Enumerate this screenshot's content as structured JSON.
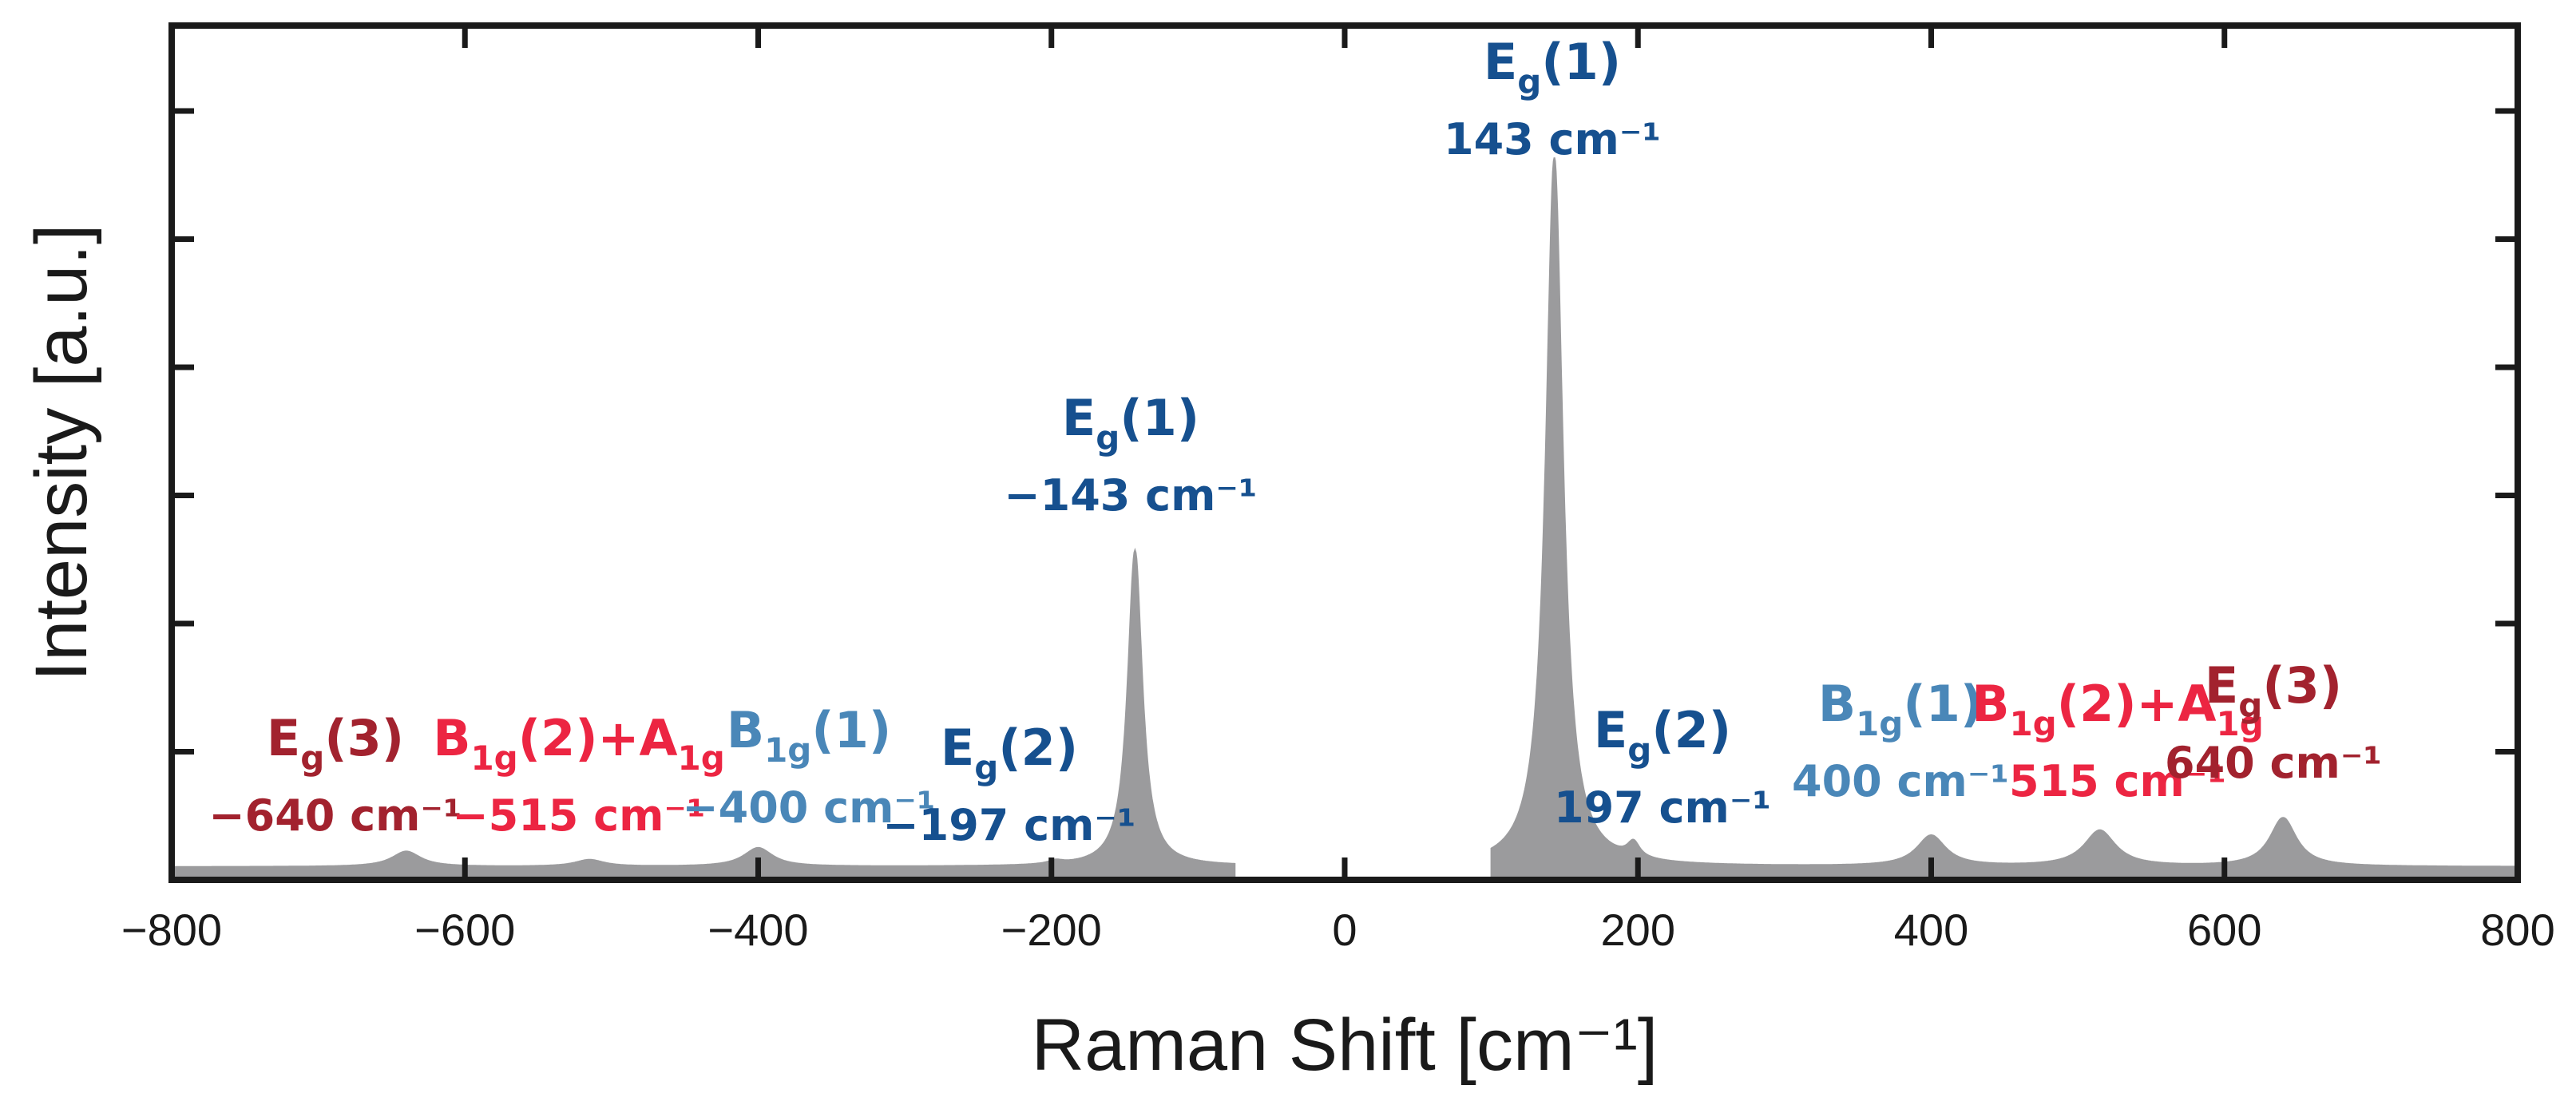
{
  "chart_data": {
    "type": "area",
    "title": "",
    "xlabel": "Raman Shift [cm⁻¹]",
    "ylabel": "Intensity [a.u.]",
    "xlim": [
      -800,
      800
    ],
    "ylim": [
      0,
      1.0
    ],
    "x_ticks": [
      -800,
      -600,
      -400,
      -200,
      0,
      200,
      400,
      600,
      800
    ],
    "x_tick_labels": [
      "−800",
      "−600",
      "−400",
      "−200",
      "0",
      "200",
      "400",
      "600",
      "800"
    ],
    "y_tick_labels_shown": false,
    "grid": false,
    "baseline": 0.015,
    "gap_range": [
      -75,
      100
    ],
    "peaks": [
      {
        "center": -640,
        "height": 0.018,
        "width": 12
      },
      {
        "center": -515,
        "height": 0.008,
        "width": 12
      },
      {
        "center": -400,
        "height": 0.022,
        "width": 12
      },
      {
        "center": -197,
        "height": 0.004,
        "width": 6
      },
      {
        "center": -143,
        "height": 0.37,
        "width": 6
      },
      {
        "center": 143,
        "height": 0.83,
        "width": 7
      },
      {
        "center": 197,
        "height": 0.018,
        "width": 5
      },
      {
        "center": 400,
        "height": 0.036,
        "width": 12
      },
      {
        "center": 515,
        "height": 0.042,
        "width": 13
      },
      {
        "center": 640,
        "height": 0.057,
        "width": 11
      }
    ],
    "series_color": "#9b9b9d",
    "annotations": [
      {
        "id": "eg3-neg",
        "base": "E",
        "sub": "g",
        "suffix": "(3)",
        "value": "−640 cm⁻¹",
        "color": "#a2222e"
      },
      {
        "id": "b1g2a1g-neg",
        "base": "B",
        "sub": "1g",
        "suffix": "(2)+A",
        "sub2": "1g",
        "value": "−515 cm⁻¹",
        "color": "#ec2542"
      },
      {
        "id": "b1g1-neg",
        "base": "B",
        "sub": "1g",
        "suffix": "(1)",
        "value": "−400 cm⁻¹",
        "color": "#4a87b8"
      },
      {
        "id": "eg2-neg",
        "base": "E",
        "sub": "g",
        "suffix": "(2)",
        "value": "−197 cm⁻¹",
        "color": "#16508f"
      },
      {
        "id": "eg1-neg",
        "base": "E",
        "sub": "g",
        "suffix": "(1)",
        "value": "−143 cm⁻¹",
        "color": "#16508f"
      },
      {
        "id": "eg1-pos",
        "base": "E",
        "sub": "g",
        "suffix": "(1)",
        "value": "143 cm⁻¹",
        "color": "#16508f"
      },
      {
        "id": "eg2-pos",
        "base": "E",
        "sub": "g",
        "suffix": "(2)",
        "value": "197 cm⁻¹",
        "color": "#16508f"
      },
      {
        "id": "b1g1-pos",
        "base": "B",
        "sub": "1g",
        "suffix": "(1)",
        "value": "400 cm⁻¹",
        "color": "#4a87b8"
      },
      {
        "id": "b1g2a1g-pos",
        "base": "B",
        "sub": "1g",
        "suffix": "(2)+A",
        "sub2": "1g",
        "value": "515 cm⁻¹",
        "color": "#ec2542"
      },
      {
        "id": "eg3-pos",
        "base": "E",
        "sub": "g",
        "suffix": "(3)",
        "value": "640 cm⁻¹",
        "color": "#a2222e"
      }
    ]
  }
}
